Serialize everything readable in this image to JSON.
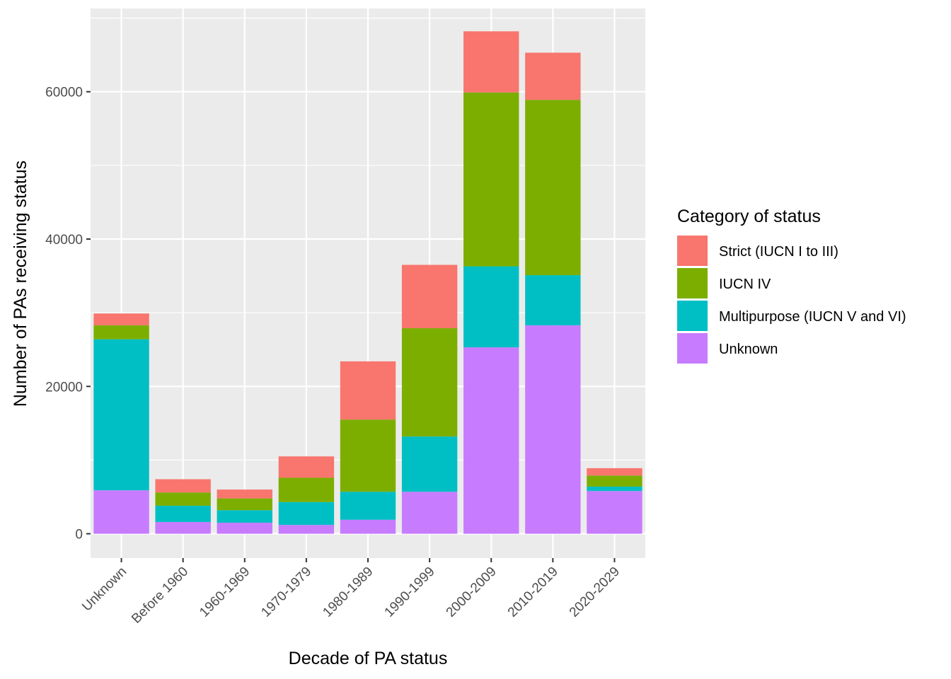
{
  "chart_data": {
    "type": "bar",
    "stacked": true,
    "categories": [
      "Unknown",
      "Before 1960",
      "1960-1969",
      "1970-1979",
      "1980-1989",
      "1990-1999",
      "2000-2009",
      "2010-2019",
      "2020-2029"
    ],
    "series": [
      {
        "name": "Unknown",
        "color": "#C77CFF",
        "values": [
          5900,
          1600,
          1500,
          1200,
          1900,
          5700,
          25300,
          28300,
          5800
        ]
      },
      {
        "name": "Multipurpose (IUCN V and VI)",
        "color": "#00BFC4",
        "values": [
          20500,
          2200,
          1700,
          3100,
          3800,
          7500,
          11000,
          6800,
          600
        ]
      },
      {
        "name": "IUCN IV",
        "color": "#7CAE00",
        "values": [
          1900,
          1800,
          1600,
          3300,
          9800,
          14700,
          23600,
          23800,
          1500
        ]
      },
      {
        "name": "Strict (IUCN I to III)",
        "color": "#F8766D",
        "values": [
          1600,
          1800,
          1200,
          2900,
          7900,
          8600,
          8300,
          6400,
          1000
        ]
      }
    ],
    "xlabel": "Decade of PA status",
    "ylabel": "Number of PAs receiving status",
    "ylim": [
      -3300,
      71300
    ],
    "yticks": [
      0,
      20000,
      40000,
      60000
    ],
    "ytick_labels": [
      "0",
      "20000",
      "40000",
      "60000"
    ],
    "grid": true,
    "legend": {
      "title": "Category of status",
      "placement": "right",
      "entries": [
        "Strict (IUCN I to III)",
        "IUCN IV",
        "Multipurpose (IUCN V and VI)",
        "Unknown"
      ]
    }
  }
}
